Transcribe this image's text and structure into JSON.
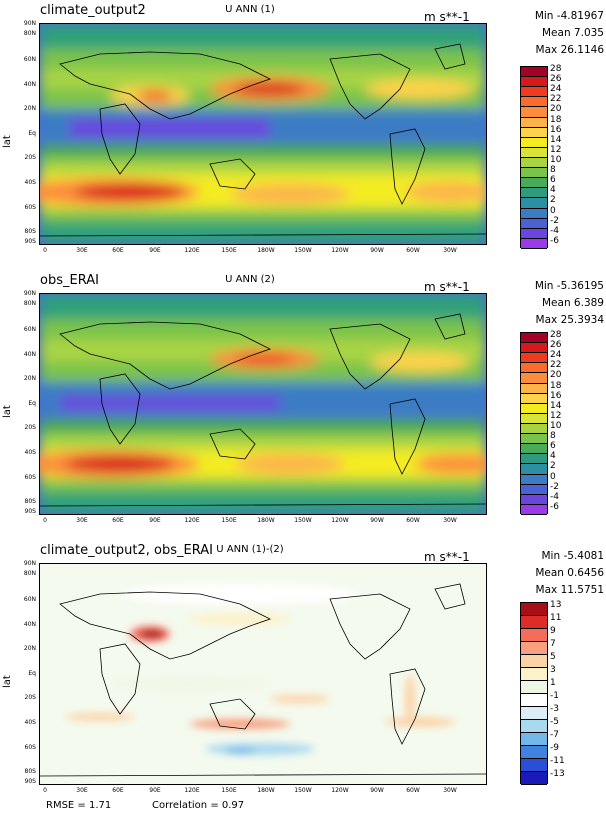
{
  "panels": [
    {
      "name": "climate_output2",
      "title": "U ANN (1)",
      "units": "m s**-1",
      "min": "Min -4.81967",
      "mean": "Mean 7.035",
      "max": "Max 26.1146",
      "colorbar_labels": [
        "28",
        "26",
        "24",
        "22",
        "20",
        "18",
        "16",
        "14",
        "12",
        "10",
        "8",
        "6",
        "4",
        "2",
        "0",
        "-2",
        "-4",
        "-6"
      ],
      "colorbar_colors": [
        "#a50026",
        "#d7191c",
        "#f03b20",
        "#fd6a2a",
        "#fd8d3c",
        "#fdb24c",
        "#fed34c",
        "#f4ec22",
        "#d9e43a",
        "#a8d444",
        "#7cc34c",
        "#49ab59",
        "#2f9a7e",
        "#2e8ea4",
        "#3a7dc4",
        "#4a63d4",
        "#6a45e0",
        "#9a3ae8"
      ]
    },
    {
      "name": "obs_ERAI",
      "title": "U ANN (2)",
      "units": "m s**-1",
      "min": "Min -5.36195",
      "mean": "Mean 6.389",
      "max": "Max 25.3934",
      "colorbar_labels": [
        "28",
        "26",
        "24",
        "22",
        "20",
        "18",
        "16",
        "14",
        "12",
        "10",
        "8",
        "6",
        "4",
        "2",
        "0",
        "-2",
        "-4",
        "-6"
      ],
      "colorbar_colors": [
        "#a50026",
        "#d7191c",
        "#f03b20",
        "#fd6a2a",
        "#fd8d3c",
        "#fdb24c",
        "#fed34c",
        "#f4ec22",
        "#d9e43a",
        "#a8d444",
        "#7cc34c",
        "#49ab59",
        "#2f9a7e",
        "#2e8ea4",
        "#3a7dc4",
        "#4a63d4",
        "#6a45e0",
        "#9a3ae8"
      ]
    },
    {
      "name": "climate_output2, obs_ERAI",
      "title": "U ANN (1)-(2)",
      "units": "m s**-1",
      "min": "Min -5.4081",
      "mean": "Mean 0.6456",
      "max": "Max 11.5751",
      "colorbar_labels": [
        "13",
        "11",
        "9",
        "7",
        "5",
        "3",
        "1",
        "-1",
        "-3",
        "-5",
        "-7",
        "-9",
        "-11",
        "-13"
      ],
      "colorbar_colors": [
        "#a50f15",
        "#de2d26",
        "#f46d5b",
        "#f79f7e",
        "#fcd3a8",
        "#fdf1c9",
        "#eef7e4",
        "#ffffff",
        "#dbeef8",
        "#a9d8f0",
        "#73b6e8",
        "#3f82e0",
        "#2a4fd6",
        "#1a1ab8"
      ]
    }
  ],
  "axes": {
    "ylabel": "lat",
    "lat_ticks": [
      "90N",
      "80N",
      "60N",
      "40N",
      "20N",
      "Eq",
      "20S",
      "40S",
      "60S",
      "80S",
      "90S"
    ],
    "lon_ticks": [
      "0",
      "30E",
      "60E",
      "90E",
      "120E",
      "150E",
      "180W",
      "150W",
      "120W",
      "90W",
      "60W",
      "30W"
    ]
  },
  "footer": {
    "rmse": "RMSE = 1.71",
    "correlation": "Correlation = 0.97"
  },
  "colors": {
    "landline": "#000000",
    "background": "#ffffff"
  }
}
